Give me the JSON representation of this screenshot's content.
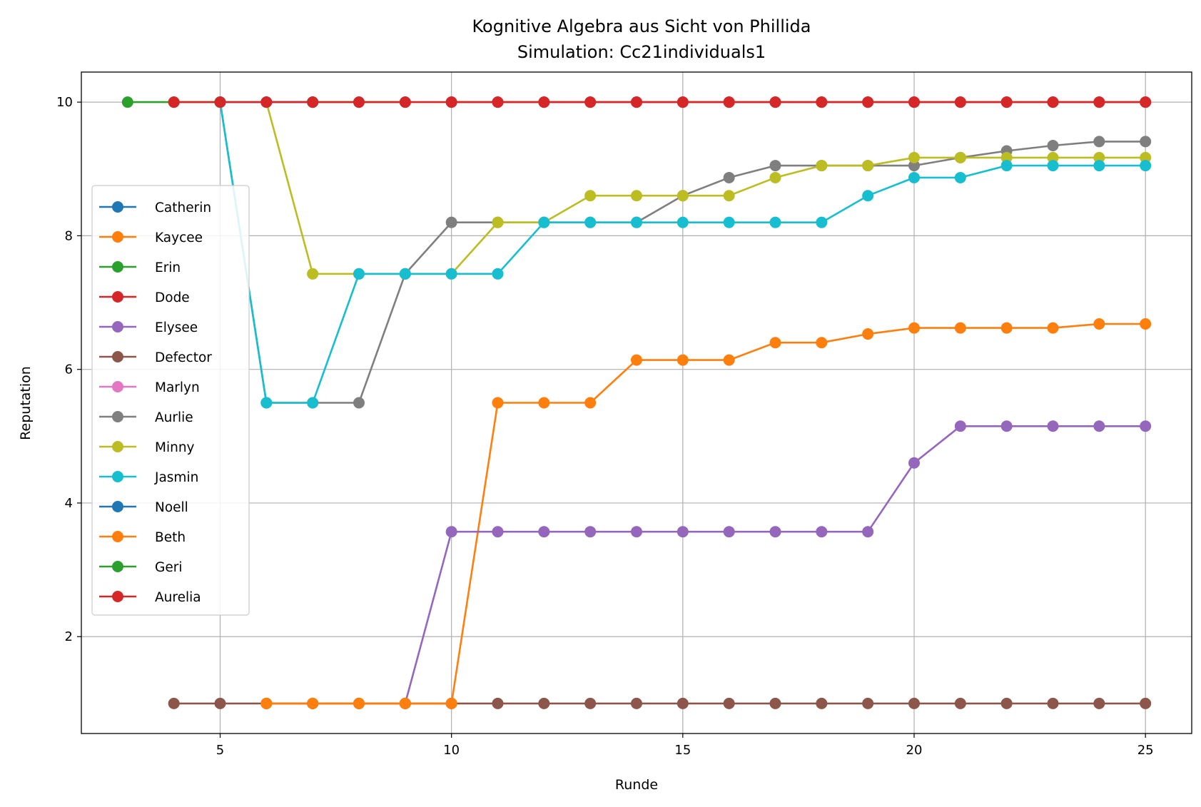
{
  "chart_data": {
    "type": "line",
    "title": "Kognitive Algebra aus Sicht von Phillida",
    "subtitle": "Simulation: Cc21individuals1",
    "xlabel": "Runde",
    "ylabel": "Reputation",
    "xlim": [
      2.0,
      26.0
    ],
    "ylim": [
      0.55,
      10.45
    ],
    "xticks": [
      5,
      10,
      15,
      20,
      25
    ],
    "yticks": [
      2,
      4,
      6,
      8,
      10
    ],
    "grid": true,
    "legend_position": "center-left",
    "series": [
      {
        "name": "Catherin",
        "color": "#1f77b4",
        "x": [
          5,
          6,
          7
        ],
        "y": [
          10,
          10,
          10
        ]
      },
      {
        "name": "Kaycee",
        "color": "#ff7f0e",
        "x": [
          6,
          7,
          8,
          9,
          10,
          11,
          12,
          13,
          14,
          15,
          16,
          17,
          18,
          19,
          20,
          21,
          22,
          23,
          24,
          25
        ],
        "y": [
          1,
          1,
          1,
          1,
          1,
          5.5,
          5.5,
          5.5,
          6.14,
          6.14,
          6.14,
          6.4,
          6.4,
          6.53,
          6.62,
          6.62,
          6.62,
          6.62,
          6.68,
          6.68
        ]
      },
      {
        "name": "Erin",
        "color": "#2ca02c",
        "x": [
          7,
          8,
          9
        ],
        "y": [
          10,
          10,
          10
        ]
      },
      {
        "name": "Dode",
        "color": "#d62728",
        "x": [
          10,
          11,
          12,
          13,
          14,
          15,
          16,
          17,
          18,
          19,
          20,
          21,
          22,
          23,
          24,
          25
        ],
        "y": [
          10,
          10,
          10,
          10,
          10,
          10,
          10,
          10,
          10,
          10,
          10,
          10,
          10,
          10,
          10,
          10
        ]
      },
      {
        "name": "Elysee",
        "color": "#9467bd",
        "x": [
          9,
          10,
          11,
          12,
          13,
          14,
          15,
          16,
          17,
          18,
          19,
          20,
          21,
          22,
          23,
          24,
          25
        ],
        "y": [
          1,
          3.57,
          3.57,
          3.57,
          3.57,
          3.57,
          3.57,
          3.57,
          3.57,
          3.57,
          3.57,
          4.6,
          5.15,
          5.15,
          5.15,
          5.15,
          5.15
        ]
      },
      {
        "name": "Defector",
        "color": "#8c564b",
        "x": [
          4,
          5,
          6,
          7,
          8,
          9,
          10,
          11,
          12,
          13,
          14,
          15,
          16,
          17,
          18,
          19,
          20,
          21,
          22,
          23,
          24,
          25
        ],
        "y": [
          1,
          1,
          1,
          1,
          1,
          1,
          1,
          1,
          1,
          1,
          1,
          1,
          1,
          1,
          1,
          1,
          1,
          1,
          1,
          1,
          1,
          1
        ]
      },
      {
        "name": "Marlyn",
        "color": "#e377c2",
        "x": [],
        "y": []
      },
      {
        "name": "Aurlie",
        "color": "#7f7f7f",
        "x": [
          5,
          6,
          7,
          8,
          9,
          10,
          11,
          12,
          13,
          14,
          15,
          16,
          17,
          18,
          19,
          20,
          21,
          22,
          23,
          24,
          25
        ],
        "y": [
          10,
          5.5,
          5.5,
          5.5,
          7.43,
          8.2,
          8.2,
          8.2,
          8.2,
          8.2,
          8.6,
          8.87,
          9.05,
          9.05,
          9.05,
          9.05,
          9.17,
          9.27,
          9.35,
          9.41,
          9.41
        ]
      },
      {
        "name": "Minny",
        "color": "#bcbd22",
        "x": [
          6,
          7,
          8,
          9,
          10,
          11,
          12,
          13,
          14,
          15,
          16,
          17,
          18,
          19,
          20,
          21,
          22,
          23,
          24,
          25
        ],
        "y": [
          10,
          7.43,
          7.43,
          7.43,
          7.43,
          8.2,
          8.2,
          8.6,
          8.6,
          8.6,
          8.6,
          8.87,
          9.05,
          9.05,
          9.17,
          9.17,
          9.17,
          9.17,
          9.17,
          9.17
        ]
      },
      {
        "name": "Jasmin",
        "color": "#17becf",
        "x": [
          5,
          6,
          7,
          8,
          9,
          10,
          11,
          12,
          13,
          14,
          15,
          16,
          17,
          18,
          19,
          20,
          21,
          22,
          23,
          24,
          25
        ],
        "y": [
          10,
          5.5,
          5.5,
          7.43,
          7.43,
          7.43,
          7.43,
          8.2,
          8.2,
          8.2,
          8.2,
          8.2,
          8.2,
          8.2,
          8.6,
          8.87,
          8.87,
          9.05,
          9.05,
          9.05,
          9.05
        ]
      },
      {
        "name": "Noell",
        "color": "#1f77b4",
        "x": [
          6,
          7
        ],
        "y": [
          10,
          10
        ]
      },
      {
        "name": "Beth",
        "color": "#ff7f0e",
        "x": [
          6,
          7,
          8,
          9,
          10
        ],
        "y": [
          1,
          1,
          1,
          1,
          1
        ]
      },
      {
        "name": "Geri",
        "color": "#2ca02c",
        "x": [
          3,
          4,
          5
        ],
        "y": [
          10,
          10,
          10
        ]
      },
      {
        "name": "Aurelia",
        "color": "#d62728",
        "x": [
          4,
          5,
          6,
          7,
          8,
          9,
          10,
          11,
          12,
          13,
          14,
          15,
          16,
          17,
          18,
          19,
          20,
          21,
          22,
          23,
          24,
          25
        ],
        "y": [
          10,
          10,
          10,
          10,
          10,
          10,
          10,
          10,
          10,
          10,
          10,
          10,
          10,
          10,
          10,
          10,
          10,
          10,
          10,
          10,
          10,
          10
        ]
      }
    ]
  }
}
